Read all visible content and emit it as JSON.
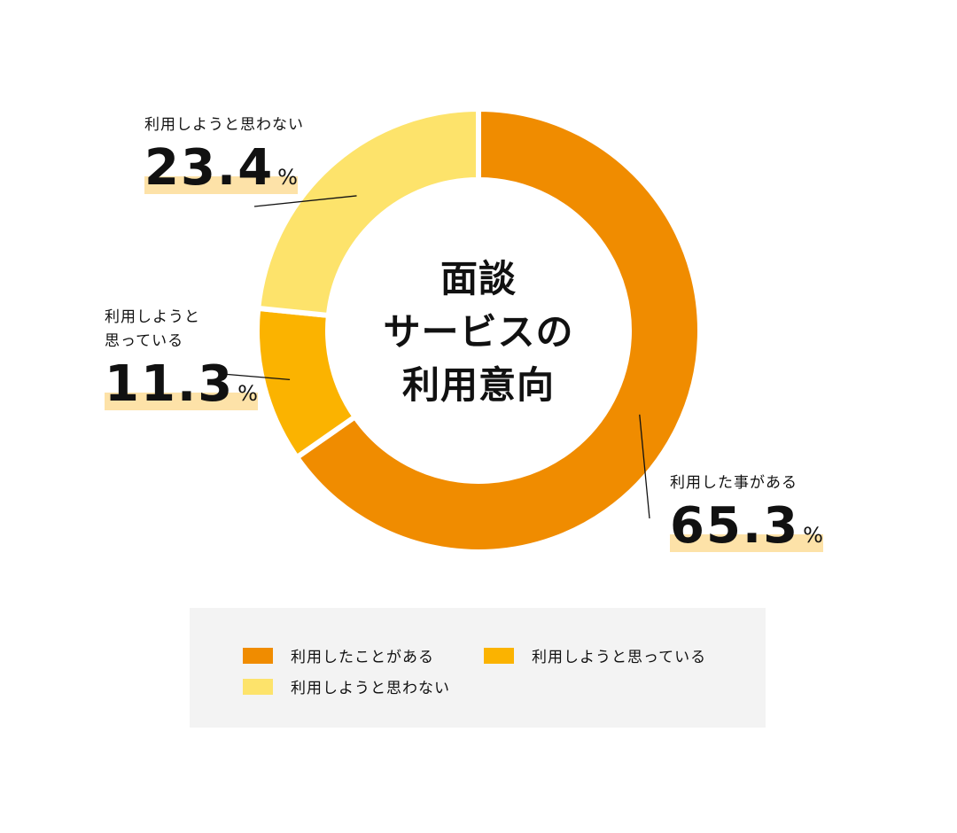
{
  "chart_data": {
    "type": "pie",
    "title": "面談サービスの利用意向",
    "title_lines": [
      "面談",
      "サービスの",
      "利用意向"
    ],
    "unit": "%",
    "slices": [
      {
        "label": "利用したことがある",
        "callout_label": "利用した事がある",
        "value": 65.3,
        "value_text": "65.3",
        "color": "#f08c00"
      },
      {
        "label": "利用しようと思っている",
        "callout_label_lines": [
          "利用しようと",
          "思っている"
        ],
        "value": 11.3,
        "value_text": "11.3",
        "color": "#fbb300"
      },
      {
        "label": "利用しようと思わない",
        "callout_label": "利用しようと思わない",
        "value": 23.4,
        "value_text": "23.4",
        "color": "#fde36b"
      }
    ],
    "start_angle_deg": 0,
    "direction": "clockwise",
    "legend_position": "bottom"
  },
  "colors": {
    "highlight": "#fde2a8",
    "legend_bg": "#f3f3f3",
    "leader_line": "#111111"
  }
}
